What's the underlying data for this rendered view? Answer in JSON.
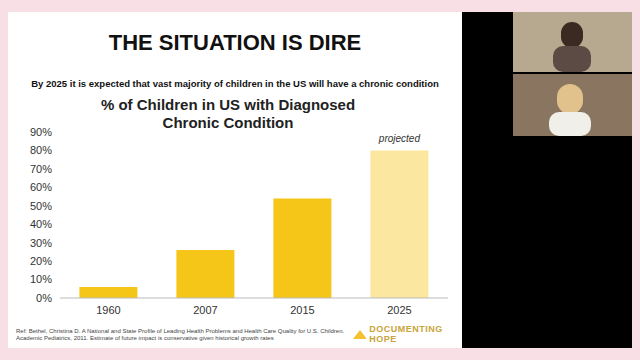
{
  "slide": {
    "heading": "THE SITUATION IS DIRE",
    "subheading": "By 2025 it is expected that vast majority of children in the US will have a chronic condition",
    "reference": "Ref: Bethel, Christina D. A National and State Profile of Leading Health Problems and Health Care Quality for U.S. Children. Academic Pediatrics, 2011.  Estimate of future impact is conservative given historical growth rates",
    "logo": "DOCUMENTING HOPE"
  },
  "chart_data": {
    "type": "bar",
    "title": "% of Children in US with Diagnosed Chronic Condition",
    "categories": [
      "1960",
      "2007",
      "2015",
      "2025"
    ],
    "values": [
      6,
      26,
      54,
      80
    ],
    "colors": [
      "#f5c518",
      "#f5c518",
      "#f5c518",
      "#fce7a0"
    ],
    "ylim": [
      0,
      90
    ],
    "yticks": [
      {
        "value": 0,
        "label": "0%"
      },
      {
        "value": 10,
        "label": "10%"
      },
      {
        "value": 20,
        "label": "20%"
      },
      {
        "value": 30,
        "label": "30%"
      },
      {
        "value": 40,
        "label": "40%"
      },
      {
        "value": 50,
        "label": "50%"
      },
      {
        "value": 60,
        "label": "60%"
      },
      {
        "value": 70,
        "label": "70%"
      },
      {
        "value": 80,
        "label": "80%"
      },
      {
        "value": 90,
        "label": "90%"
      }
    ],
    "annotations": [
      {
        "category": "2025",
        "text": "projected"
      }
    ],
    "grid": false
  }
}
